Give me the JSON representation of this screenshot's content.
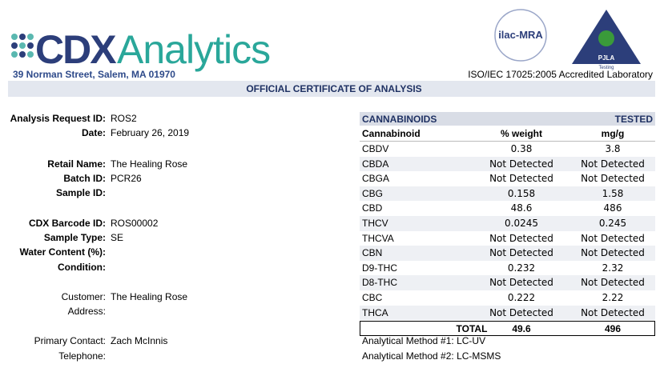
{
  "header": {
    "logo": {
      "part1": "CDX",
      "part2": "Analytics"
    },
    "address": "39 Norman Street, Salem, MA 01970",
    "badges": [
      "ilac-MRA",
      "PJLA",
      "Testing"
    ],
    "accreditation": "ISO/IEC 17025:2005 Accredited Laboratory"
  },
  "title": "OFFICIAL CERTIFICATE OF ANALYSIS",
  "fields": [
    {
      "label": "Analysis Request ID:",
      "value": "ROS2"
    },
    {
      "label": "Date:",
      "value": "February 26, 2019"
    },
    {
      "label": "Retail Name:",
      "value": "The Healing Rose"
    },
    {
      "label": "Batch ID:",
      "value": "PCR26"
    },
    {
      "label": "Sample ID:",
      "value": ""
    },
    {
      "label": "CDX Barcode ID:",
      "value": "ROS00002"
    },
    {
      "label": "Sample Type:",
      "value": "SE"
    },
    {
      "label": "Water Content (%):",
      "value": ""
    },
    {
      "label": "Condition:",
      "value": ""
    },
    {
      "label": "Customer:",
      "value": "The Healing Rose"
    },
    {
      "label": "Address:",
      "value": ""
    },
    {
      "label": "Primary Contact:",
      "value": "Zach McInnis"
    },
    {
      "label": "Telephone:",
      "value": ""
    }
  ],
  "table": {
    "section": "CANNABINOIDS",
    "status": "TESTED",
    "columns": [
      "Cannabinoid",
      "% weight",
      "mg/g"
    ],
    "rows": [
      [
        "CBDV",
        "0.38",
        "3.8"
      ],
      [
        "CBDA",
        "Not Detected",
        "Not Detected"
      ],
      [
        "CBGA",
        "Not Detected",
        "Not Detected"
      ],
      [
        "CBG",
        "0.158",
        "1.58"
      ],
      [
        "CBD",
        "48.6",
        "486"
      ],
      [
        "THCV",
        "0.0245",
        "0.245"
      ],
      [
        "THCVA",
        "Not Detected",
        "Not Detected"
      ],
      [
        "CBN",
        "Not Detected",
        "Not Detected"
      ],
      [
        "D9-THC",
        "0.232",
        "2.32"
      ],
      [
        "D8-THC",
        "Not Detected",
        "Not Detected"
      ],
      [
        "CBC",
        "0.222",
        "2.22"
      ],
      [
        "THCA",
        "Not Detected",
        "Not Detected"
      ]
    ],
    "total": [
      "TOTAL",
      "49.6",
      "496"
    ]
  },
  "methods": [
    "Analytical Method #1: LC-UV",
    "Analytical Method #2: LC-MSMS"
  ]
}
